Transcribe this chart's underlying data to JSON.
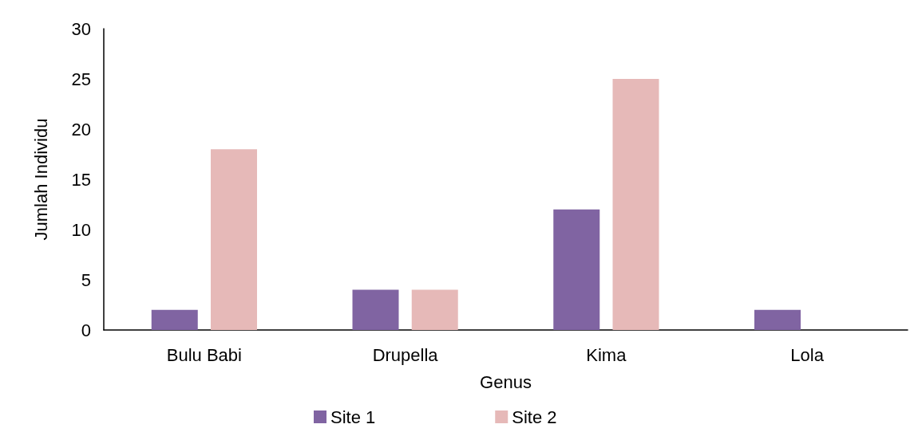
{
  "chart_data": {
    "type": "bar",
    "xlabel": "Genus",
    "ylabel": "Jumlah Individu",
    "categories": [
      "Bulu Babi",
      "Drupella",
      "Kima",
      "Lola"
    ],
    "series": [
      {
        "name": "Site 1",
        "color": "#8064a2",
        "values": [
          2,
          4,
          12,
          2
        ]
      },
      {
        "name": "Site 2",
        "color": "#e6b9b8",
        "values": [
          18,
          4,
          25,
          0
        ]
      }
    ],
    "ylim": [
      0,
      30
    ],
    "yticks": [
      0,
      5,
      10,
      15,
      20,
      25,
      30
    ],
    "grid": false,
    "legend": "bottom"
  }
}
